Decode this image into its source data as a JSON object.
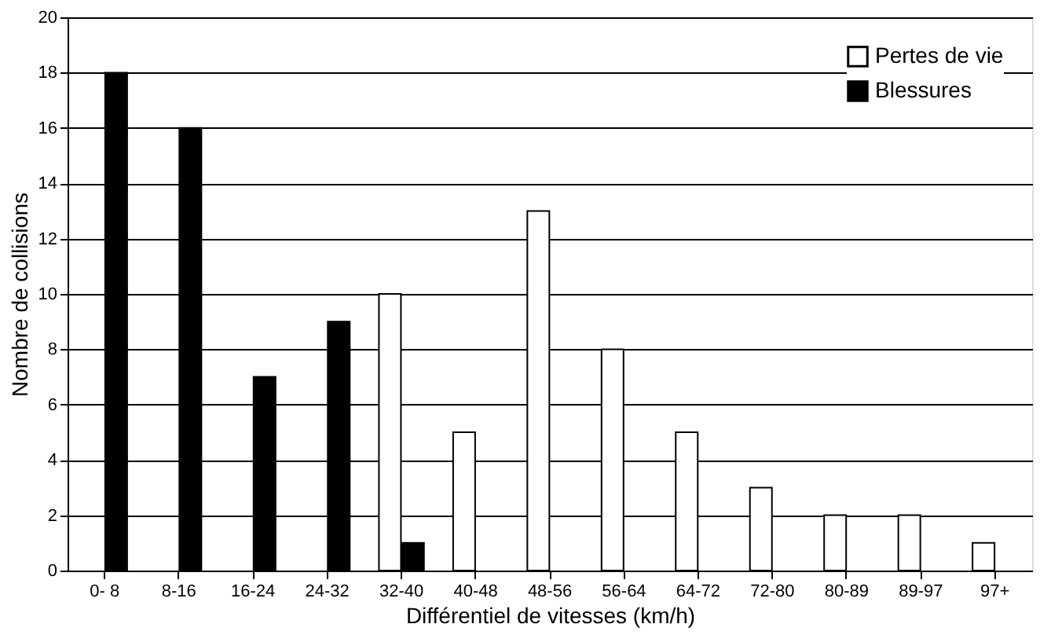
{
  "chart_data": {
    "type": "bar",
    "xlabel": "Différentiel de vitesses (km/h)",
    "ylabel": "Nombre de collisions",
    "categories": [
      "0- 8",
      "8-16",
      "16-24",
      "24-32",
      "32-40",
      "40-48",
      "48-56",
      "56-64",
      "64-72",
      "72-80",
      "80-89",
      "89-97",
      "97+"
    ],
    "series": [
      {
        "name": "Pertes de vie",
        "color": "#ffffff",
        "values": [
          null,
          null,
          null,
          null,
          10,
          5,
          13,
          8,
          5,
          3,
          2,
          2,
          1
        ]
      },
      {
        "name": "Blessures",
        "color": "#000000",
        "values": [
          18,
          16,
          7,
          9,
          1,
          null,
          null,
          null,
          null,
          null,
          null,
          null,
          null
        ]
      }
    ],
    "ylim": [
      0,
      20
    ],
    "yticks": [
      0,
      2,
      4,
      6,
      8,
      10,
      12,
      14,
      16,
      18,
      20
    ],
    "grid": "y",
    "legend": "top right"
  }
}
